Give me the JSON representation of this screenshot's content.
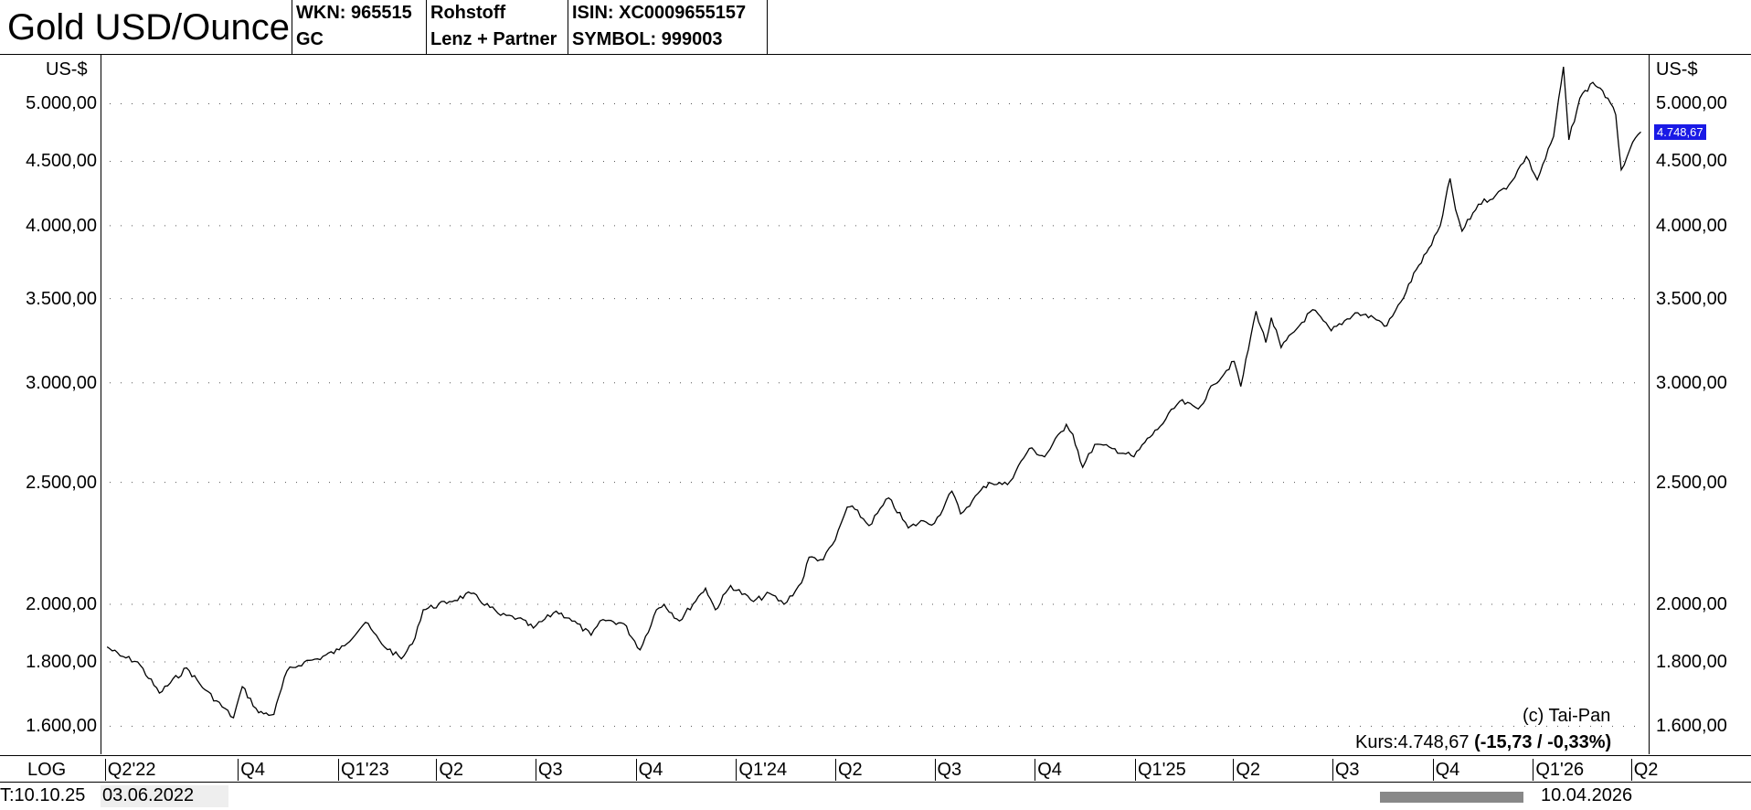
{
  "header": {
    "title": "Gold USD/Ounce",
    "wkn": "WKN: 965515",
    "code": "GC",
    "category": "Rohstoff",
    "provider": "Lenz + Partner",
    "isin": "ISIN: XC0009655157",
    "symbol": "SYMBOL: 999003"
  },
  "unit_left": "US-$",
  "unit_right": "US-$",
  "copyright": "(c) Tai-Pan",
  "kurs_label": "Kurs:4.748,67",
  "kurs_change": "(-15,73 / -0,33%)",
  "last_price_badge": "4.748,67",
  "scale_mode": "LOG",
  "footer": {
    "left_time": "T:10.10.25",
    "start_date": "03.06.2022",
    "end_date": "10.04.2026"
  },
  "chart_data": {
    "type": "line",
    "title": "Gold USD/Ounce",
    "ylabel": "US-$",
    "yscale": "log",
    "ylim": [
      1520,
      5450
    ],
    "yticks": [
      {
        "value": 1600,
        "label": "1.600,00"
      },
      {
        "value": 1800,
        "label": "1.800,00"
      },
      {
        "value": 2000,
        "label": "2.000,00"
      },
      {
        "value": 2500,
        "label": "2.500,00"
      },
      {
        "value": 3000,
        "label": "3.000,00"
      },
      {
        "value": 3500,
        "label": "3.500,00"
      },
      {
        "value": 4000,
        "label": "4.000,00"
      },
      {
        "value": 4500,
        "label": "4.500,00"
      },
      {
        "value": 5000,
        "label": "5.000,00"
      }
    ],
    "xlim": [
      "2022-05-28",
      "2026-04-18"
    ],
    "xticks": [
      {
        "date": "2022-06-01",
        "label": "Q2'22"
      },
      {
        "date": "2022-10-01",
        "label": "Q4"
      },
      {
        "date": "2023-01-01",
        "label": "Q1'23"
      },
      {
        "date": "2023-04-01",
        "label": "Q2"
      },
      {
        "date": "2023-07-01",
        "label": "Q3"
      },
      {
        "date": "2023-10-01",
        "label": "Q4"
      },
      {
        "date": "2024-01-01",
        "label": "Q1'24"
      },
      {
        "date": "2024-04-01",
        "label": "Q2"
      },
      {
        "date": "2024-07-01",
        "label": "Q3"
      },
      {
        "date": "2024-10-01",
        "label": "Q4"
      },
      {
        "date": "2025-01-01",
        "label": "Q1'25"
      },
      {
        "date": "2025-04-01",
        "label": "Q2"
      },
      {
        "date": "2025-07-01",
        "label": "Q3"
      },
      {
        "date": "2025-10-01",
        "label": "Q4"
      },
      {
        "date": "2026-01-01",
        "label": "Q1'26"
      },
      {
        "date": "2026-04-01",
        "label": "Q2"
      }
    ],
    "grid": true,
    "series": [
      {
        "x": [
          "2022-06-03",
          "2022-06-15",
          "2022-07-01",
          "2022-07-21",
          "2022-08-15",
          "2022-09-01",
          "2022-09-27",
          "2022-10-05",
          "2022-10-20",
          "2022-11-03",
          "2022-11-15",
          "2022-12-01",
          "2022-12-13",
          "2023-01-02",
          "2023-01-26",
          "2023-02-10",
          "2023-02-28",
          "2023-03-10",
          "2023-03-20",
          "2023-04-13",
          "2023-05-03",
          "2023-05-30",
          "2023-06-15",
          "2023-06-29",
          "2023-07-20",
          "2023-08-01",
          "2023-08-21",
          "2023-09-01",
          "2023-09-20",
          "2023-10-05",
          "2023-10-20",
          "2023-10-27",
          "2023-11-10",
          "2023-11-30",
          "2023-12-04",
          "2023-12-13",
          "2023-12-27",
          "2024-01-17",
          "2024-02-01",
          "2024-02-14",
          "2024-03-01",
          "2024-03-08",
          "2024-03-21",
          "2024-04-01",
          "2024-04-12",
          "2024-04-19",
          "2024-05-02",
          "2024-05-20",
          "2024-06-07",
          "2024-06-21",
          "2024-07-01",
          "2024-07-17",
          "2024-07-25",
          "2024-08-05",
          "2024-08-20",
          "2024-09-06",
          "2024-09-26",
          "2024-10-10",
          "2024-10-30",
          "2024-11-05",
          "2024-11-14",
          "2024-11-25",
          "2024-12-11",
          "2024-12-31",
          "2025-01-10",
          "2025-01-24",
          "2025-02-11",
          "2025-02-28",
          "2025-03-14",
          "2025-04-02",
          "2025-04-08",
          "2025-04-22",
          "2025-05-01",
          "2025-05-06",
          "2025-05-15",
          "2025-06-03",
          "2025-06-13",
          "2025-06-30",
          "2025-07-22",
          "2025-08-08",
          "2025-08-20",
          "2025-09-02",
          "2025-09-16",
          "2025-09-30",
          "2025-10-08",
          "2025-10-17",
          "2025-10-22",
          "2025-10-28",
          "2025-11-12",
          "2025-11-28",
          "2025-12-10",
          "2025-12-26",
          "2026-01-05",
          "2026-01-20",
          "2026-01-29",
          "2026-02-03",
          "2026-02-13",
          "2026-02-25",
          "2026-03-06",
          "2026-03-18",
          "2026-03-23",
          "2026-03-31",
          "2026-04-10"
        ],
        "values": [
          1850,
          1820,
          1800,
          1700,
          1780,
          1710,
          1625,
          1720,
          1640,
          1635,
          1770,
          1800,
          1810,
          1840,
          1935,
          1860,
          1810,
          1860,
          1980,
          2010,
          2040,
          1960,
          1950,
          1915,
          1975,
          1950,
          1890,
          1945,
          1930,
          1840,
          1980,
          2000,
          1940,
          2040,
          2060,
          1980,
          2070,
          2010,
          2040,
          2000,
          2080,
          2180,
          2170,
          2250,
          2390,
          2380,
          2310,
          2430,
          2300,
          2330,
          2320,
          2460,
          2360,
          2420,
          2500,
          2490,
          2660,
          2620,
          2780,
          2730,
          2570,
          2680,
          2660,
          2620,
          2690,
          2770,
          2900,
          2860,
          2990,
          3120,
          2980,
          3420,
          3230,
          3380,
          3200,
          3350,
          3430,
          3300,
          3410,
          3380,
          3330,
          3480,
          3690,
          3860,
          4000,
          4360,
          4120,
          3960,
          4160,
          4230,
          4310,
          4540,
          4350,
          4710,
          5350,
          4680,
          5050,
          5200,
          5120,
          4900,
          4430,
          4600,
          4749
        ]
      }
    ]
  }
}
